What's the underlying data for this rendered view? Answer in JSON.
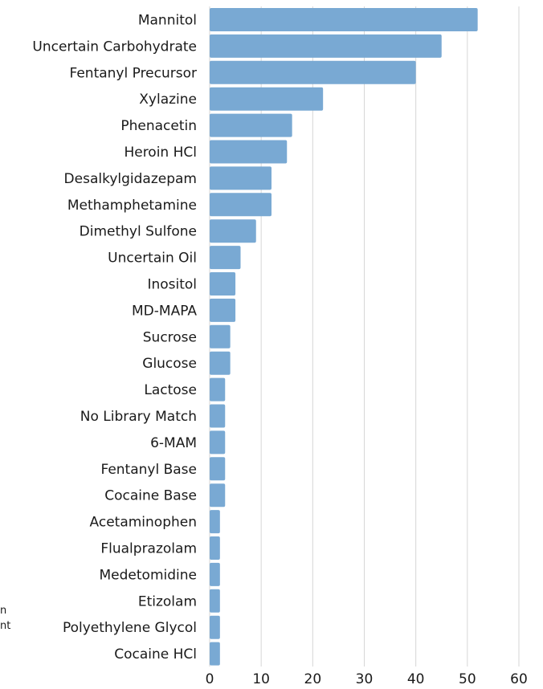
{
  "chart_data": {
    "type": "bar",
    "orientation": "horizontal",
    "categories": [
      "Mannitol",
      "Uncertain Carbohydrate",
      "Fentanyl Precursor",
      "Xylazine",
      "Phenacetin",
      "Heroin HCl",
      "Desalkylgidazepam",
      "Methamphetamine",
      "Dimethyl Sulfone",
      "Uncertain Oil",
      "Inositol",
      "MD-MAPA",
      "Sucrose",
      "Glucose",
      "Lactose",
      "No Library Match",
      "6-MAM",
      "Fentanyl Base",
      "Cocaine Base",
      "Acetaminophen",
      "Flualprazolam",
      "Medetomidine",
      "Etizolam",
      "Polyethylene Glycol",
      "Cocaine HCl"
    ],
    "values": [
      52,
      45,
      40,
      22,
      16,
      15,
      12,
      12,
      9,
      6,
      5,
      5,
      4,
      4,
      3,
      3,
      3,
      3,
      3,
      2,
      2,
      2,
      2,
      2,
      2
    ],
    "xlim": [
      0,
      60
    ],
    "xticks": [
      "0",
      "10",
      "20",
      "30",
      "40",
      "50",
      "60"
    ],
    "grid": "vertical",
    "bar_color": "#79a9d3",
    "grid_color": "#d6d6d6",
    "title": "",
    "xlabel": "",
    "ylabel": ""
  },
  "side_fragments": [
    "n",
    "nt"
  ]
}
